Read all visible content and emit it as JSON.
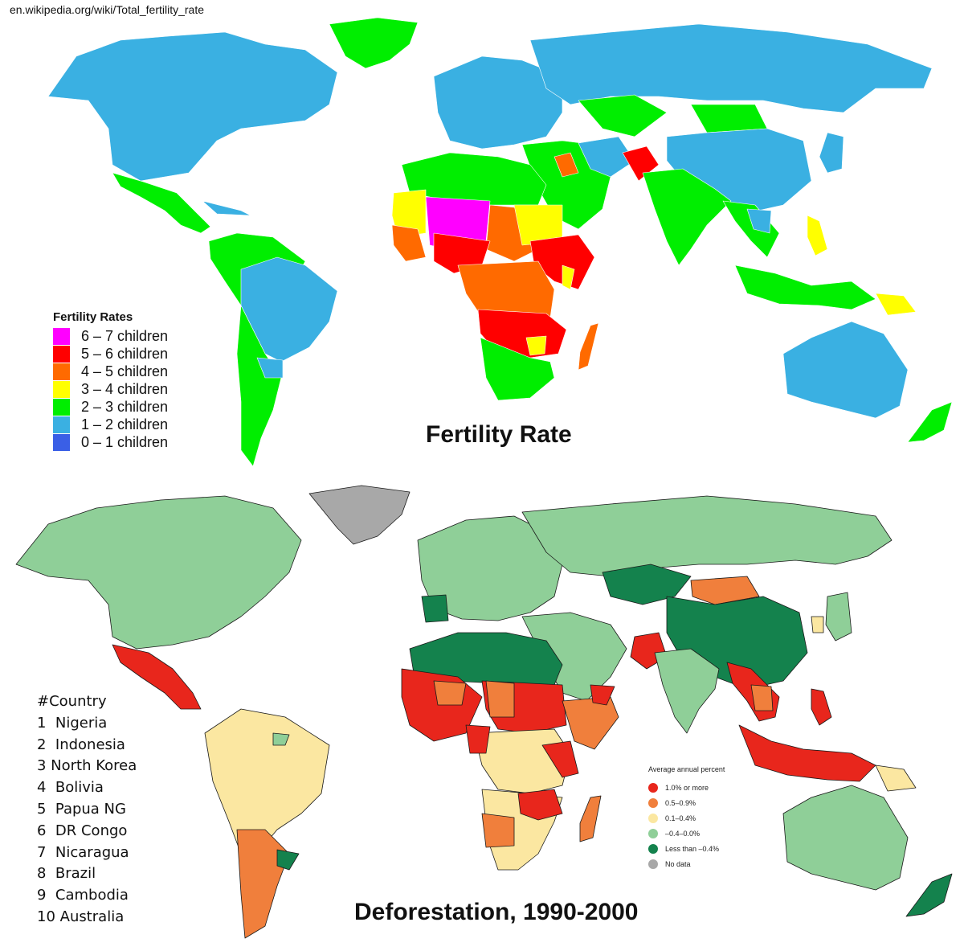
{
  "source_url": "en.wikipedia.org/wiki/Total_fertility_rate",
  "fertility_map": {
    "title": "Fertility Rate",
    "legend_title": "Fertility Rates",
    "legend": [
      {
        "label": "6 – 7 children",
        "color": "#ff00ff"
      },
      {
        "label": "5 – 6 children",
        "color": "#ff0000"
      },
      {
        "label": "4 – 5 children",
        "color": "#ff6a00"
      },
      {
        "label": "3 – 4 children",
        "color": "#ffff00"
      },
      {
        "label": "2 – 3 children",
        "color": "#00ee00"
      },
      {
        "label": "1 – 2 children",
        "color": "#3ab0e2"
      },
      {
        "label": "0 – 1 children",
        "color": "#3a5fe6"
      }
    ]
  },
  "deforestation_map": {
    "title": "Deforestation, 1990-2000",
    "legend_title": "Average annual percent",
    "legend": [
      {
        "label": "1.0% or more",
        "color": "#e8261c"
      },
      {
        "label": "0.5–0.9%",
        "color": "#f07f3c"
      },
      {
        "label": "0.1–0.4%",
        "color": "#fbe7a1"
      },
      {
        "label": "–0.4–0.0%",
        "color": "#8fcf98"
      },
      {
        "label": "Less than –0.4%",
        "color": "#14824d"
      },
      {
        "label": "No data",
        "color": "#a8a8a8"
      }
    ],
    "ranking_header": "#Country",
    "ranking": [
      "1  Nigeria",
      "2  Indonesia",
      "3 North Korea",
      "4  Bolivia",
      "5  Papua NG",
      "6  DR Congo",
      "7  Nicaragua",
      "8  Brazil",
      "9  Cambodia",
      "10 Australia"
    ]
  }
}
